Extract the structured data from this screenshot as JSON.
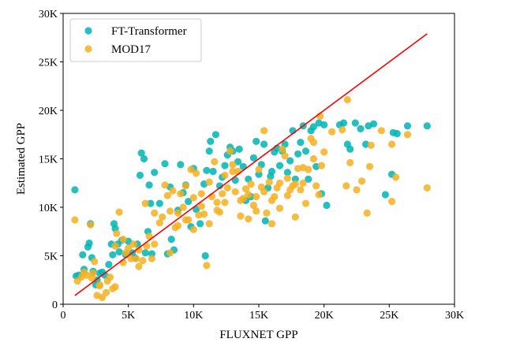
{
  "chart_data": {
    "type": "scatter",
    "xlabel": "FLUXNET GPP",
    "ylabel": "Estimated GPP",
    "xlim": [
      0,
      30000
    ],
    "ylim": [
      0,
      30000
    ],
    "xticks": [
      0,
      5000,
      10000,
      15000,
      20000,
      25000,
      30000
    ],
    "yticks": [
      0,
      5000,
      10000,
      15000,
      20000,
      25000,
      30000
    ],
    "xtick_labels": [
      "0",
      "5K",
      "10K",
      "15K",
      "20K",
      "25K",
      "30K"
    ],
    "ytick_labels": [
      "0",
      "5K",
      "10K",
      "15K",
      "20K",
      "25K",
      "30K"
    ],
    "grid": false,
    "legend_position": "top-left",
    "series": [
      {
        "name": "FT-Transformer",
        "color": "#00b4b4",
        "points": [
          [
            900,
            11800
          ],
          [
            1000,
            2900
          ],
          [
            1200,
            3000
          ],
          [
            1500,
            5100
          ],
          [
            1600,
            3600
          ],
          [
            1900,
            5900
          ],
          [
            2000,
            6300
          ],
          [
            2100,
            8300
          ],
          [
            2200,
            4800
          ],
          [
            2300,
            3400
          ],
          [
            2500,
            2000
          ],
          [
            2600,
            2500
          ],
          [
            2800,
            3200
          ],
          [
            3000,
            3300
          ],
          [
            3200,
            3000
          ],
          [
            3500,
            4100
          ],
          [
            3700,
            6200
          ],
          [
            3800,
            5100
          ],
          [
            3900,
            8300
          ],
          [
            4000,
            7800
          ],
          [
            4200,
            6200
          ],
          [
            4300,
            5400
          ],
          [
            4500,
            6600
          ],
          [
            4800,
            5100
          ],
          [
            5000,
            6500
          ],
          [
            5300,
            5300
          ],
          [
            5500,
            4800
          ],
          [
            5700,
            6200
          ],
          [
            5900,
            13300
          ],
          [
            6000,
            15600
          ],
          [
            6200,
            15000
          ],
          [
            6300,
            5300
          ],
          [
            6500,
            7500
          ],
          [
            6600,
            12300
          ],
          [
            6700,
            10400
          ],
          [
            6800,
            5200
          ],
          [
            7000,
            13600
          ],
          [
            7400,
            10400
          ],
          [
            7800,
            14500
          ],
          [
            8000,
            5200
          ],
          [
            8200,
            12100
          ],
          [
            8300,
            6700
          ],
          [
            8500,
            5600
          ],
          [
            8800,
            9700
          ],
          [
            9000,
            14400
          ],
          [
            9200,
            11500
          ],
          [
            9400,
            12300
          ],
          [
            9600,
            10600
          ],
          [
            9800,
            8000
          ],
          [
            10000,
            14000
          ],
          [
            10200,
            9800
          ],
          [
            10500,
            8300
          ],
          [
            10800,
            12400
          ],
          [
            11000,
            13800
          ],
          [
            10900,
            5000
          ],
          [
            11200,
            15800
          ],
          [
            11300,
            16800
          ],
          [
            11500,
            13700
          ],
          [
            11700,
            17500
          ],
          [
            12000,
            12200
          ],
          [
            12200,
            13100
          ],
          [
            12400,
            14300
          ],
          [
            12600,
            15400
          ],
          [
            12800,
            16200
          ],
          [
            13000,
            15800
          ],
          [
            13200,
            12800
          ],
          [
            13400,
            14700
          ],
          [
            13500,
            16000
          ],
          [
            13800,
            14200
          ],
          [
            14000,
            10700
          ],
          [
            14200,
            12900
          ],
          [
            14400,
            11100
          ],
          [
            14600,
            15100
          ],
          [
            14800,
            16800
          ],
          [
            15000,
            13400
          ],
          [
            15200,
            14400
          ],
          [
            15400,
            16500
          ],
          [
            15500,
            8600
          ],
          [
            15700,
            12000
          ],
          [
            15900,
            13200
          ],
          [
            16000,
            13700
          ],
          [
            16200,
            15700
          ],
          [
            16400,
            16100
          ],
          [
            16600,
            14300
          ],
          [
            16800,
            15800
          ],
          [
            17000,
            16500
          ],
          [
            17200,
            13600
          ],
          [
            17400,
            14800
          ],
          [
            17600,
            17900
          ],
          [
            17800,
            12900
          ],
          [
            18000,
            15500
          ],
          [
            18200,
            16700
          ],
          [
            18400,
            18400
          ],
          [
            18600,
            15800
          ],
          [
            18800,
            12900
          ],
          [
            19000,
            17900
          ],
          [
            19200,
            18300
          ],
          [
            19400,
            14200
          ],
          [
            19600,
            18700
          ],
          [
            19800,
            11400
          ],
          [
            20000,
            18500
          ],
          [
            20200,
            10200
          ],
          [
            21200,
            18500
          ],
          [
            21500,
            18700
          ],
          [
            21800,
            16500
          ],
          [
            22000,
            16000
          ],
          [
            22400,
            18700
          ],
          [
            22800,
            18100
          ],
          [
            23200,
            16500
          ],
          [
            23400,
            18400
          ],
          [
            23800,
            18600
          ],
          [
            24700,
            11300
          ],
          [
            25200,
            13400
          ],
          [
            25300,
            17700
          ],
          [
            25600,
            17600
          ],
          [
            26400,
            18400
          ],
          [
            27900,
            18400
          ]
        ]
      },
      {
        "name": "MOD17",
        "color": "#f5b021",
        "points": [
          [
            900,
            8700
          ],
          [
            1100,
            2400
          ],
          [
            1400,
            2800
          ],
          [
            1800,
            3000
          ],
          [
            2100,
            8200
          ],
          [
            2300,
            3200
          ],
          [
            2400,
            4400
          ],
          [
            2600,
            900
          ],
          [
            2800,
            2000
          ],
          [
            3000,
            700
          ],
          [
            3300,
            1200
          ],
          [
            3600,
            2800
          ],
          [
            3800,
            1600
          ],
          [
            4000,
            6000
          ],
          [
            4100,
            7300
          ],
          [
            4300,
            9500
          ],
          [
            4600,
            6700
          ],
          [
            4800,
            5300
          ],
          [
            5000,
            5800
          ],
          [
            5400,
            6200
          ],
          [
            5600,
            4700
          ],
          [
            5800,
            3900
          ],
          [
            6100,
            4500
          ],
          [
            6300,
            10400
          ],
          [
            6600,
            7000
          ],
          [
            6800,
            4700
          ],
          [
            7000,
            9400
          ],
          [
            7400,
            8400
          ],
          [
            7800,
            12300
          ],
          [
            8000,
            11200
          ],
          [
            8200,
            9600
          ],
          [
            8400,
            11700
          ],
          [
            8600,
            7900
          ],
          [
            8800,
            9400
          ],
          [
            9000,
            11400
          ],
          [
            9200,
            10000
          ],
          [
            9400,
            12200
          ],
          [
            9600,
            8700
          ],
          [
            9800,
            13900
          ],
          [
            10000,
            11000
          ],
          [
            10200,
            13500
          ],
          [
            10400,
            9200
          ],
          [
            10600,
            10100
          ],
          [
            10800,
            9300
          ],
          [
            11000,
            4000
          ],
          [
            11200,
            12600
          ],
          [
            11400,
            11100
          ],
          [
            11600,
            14700
          ],
          [
            11800,
            10500
          ],
          [
            12000,
            9500
          ],
          [
            12200,
            11400
          ],
          [
            12400,
            13300
          ],
          [
            12600,
            12000
          ],
          [
            12800,
            15800
          ],
          [
            13000,
            14400
          ],
          [
            13200,
            11600
          ],
          [
            13400,
            13700
          ],
          [
            13600,
            9100
          ],
          [
            13800,
            10900
          ],
          [
            14000,
            11900
          ],
          [
            14200,
            8800
          ],
          [
            14400,
            12400
          ],
          [
            14600,
            10200
          ],
          [
            14800,
            11100
          ],
          [
            15000,
            13900
          ],
          [
            15200,
            12100
          ],
          [
            15400,
            17900
          ],
          [
            15600,
            9400
          ],
          [
            15800,
            12600
          ],
          [
            16000,
            8300
          ],
          [
            16200,
            11100
          ],
          [
            16400,
            12000
          ],
          [
            16600,
            9900
          ],
          [
            16800,
            16000
          ],
          [
            17000,
            15300
          ],
          [
            17200,
            13000
          ],
          [
            17400,
            11800
          ],
          [
            17600,
            12200
          ],
          [
            17800,
            9000
          ],
          [
            18000,
            14000
          ],
          [
            18200,
            11800
          ],
          [
            18400,
            12500
          ],
          [
            18600,
            10400
          ],
          [
            18800,
            13900
          ],
          [
            19000,
            17100
          ],
          [
            19200,
            15000
          ],
          [
            19400,
            12200
          ],
          [
            19600,
            11300
          ],
          [
            19800,
            14300
          ],
          [
            20000,
            15700
          ],
          [
            21800,
            21100
          ],
          [
            22000,
            14600
          ],
          [
            23300,
            9400
          ],
          [
            23500,
            14200
          ],
          [
            25200,
            16500
          ],
          [
            25200,
            10600
          ],
          [
            25500,
            13100
          ],
          [
            26400,
            17500
          ],
          [
            27900,
            12000
          ],
          [
            24400,
            17900
          ],
          [
            23600,
            16400
          ],
          [
            22900,
            12700
          ],
          [
            22500,
            11800
          ],
          [
            21700,
            12200
          ],
          [
            21400,
            18000
          ],
          [
            20600,
            17800
          ],
          [
            19700,
            19400
          ],
          [
            19200,
            16700
          ],
          [
            18400,
            14100
          ],
          [
            17800,
            12400
          ],
          [
            17200,
            11200
          ],
          [
            16600,
            12500
          ],
          [
            16000,
            10700
          ],
          [
            15400,
            11600
          ],
          [
            14800,
            9600
          ],
          [
            14200,
            11300
          ],
          [
            13600,
            10700
          ],
          [
            13000,
            13700
          ],
          [
            12400,
            10500
          ],
          [
            11800,
            9700
          ],
          [
            11200,
            8300
          ],
          [
            10600,
            11400
          ],
          [
            10000,
            7700
          ],
          [
            9400,
            8700
          ],
          [
            8800,
            8100
          ],
          [
            8200,
            5300
          ],
          [
            7600,
            9000
          ],
          [
            7000,
            6200
          ],
          [
            6400,
            6000
          ],
          [
            5800,
            5600
          ],
          [
            5200,
            4700
          ],
          [
            4600,
            4300
          ],
          [
            4000,
            1800
          ],
          [
            3400,
            2400
          ],
          [
            2800,
            1900
          ],
          [
            2200,
            2700
          ],
          [
            1600,
            3300
          ]
        ]
      }
    ],
    "lines": [
      {
        "color": "#ff0000",
        "from": [
          900,
          900
        ],
        "to": [
          27900,
          27900
        ]
      }
    ]
  }
}
